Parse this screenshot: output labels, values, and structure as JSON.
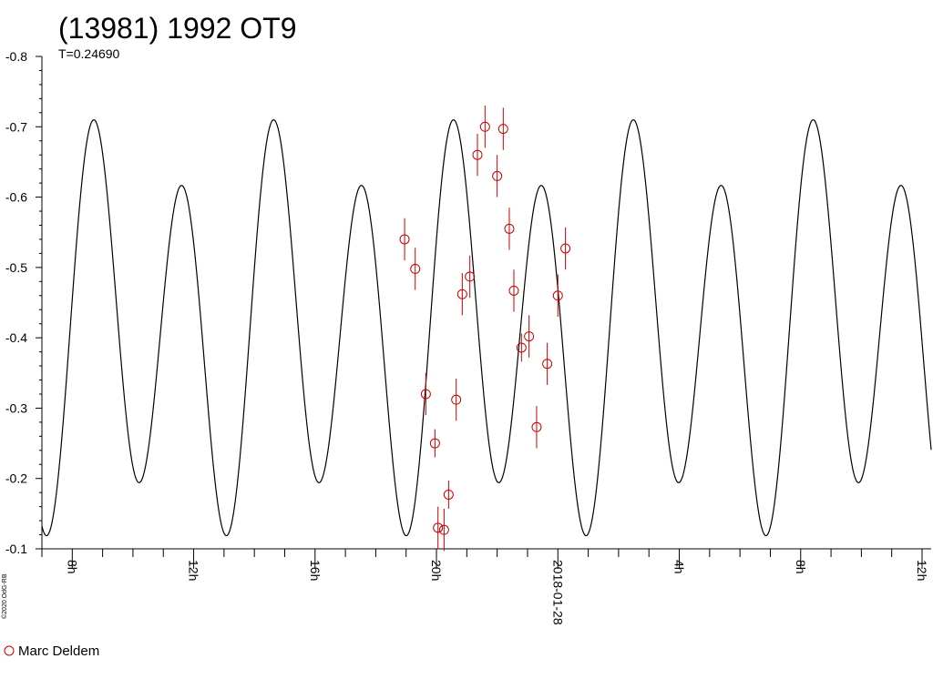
{
  "chart_data": {
    "type": "scatter",
    "title": "(13981) 1992 OT9",
    "subtitle": "T=0.24690",
    "copyright": "©2020 OdG-RB",
    "xlabel": "",
    "ylabel": "",
    "ylim": [
      -0.1,
      -0.8
    ],
    "y_ticks": [
      -0.8,
      -0.7,
      -0.6,
      -0.5,
      -0.4,
      -0.3,
      -0.2,
      -0.1
    ],
    "y_tick_labels": [
      "-0.8",
      "-0.7",
      "-0.6",
      "-0.5",
      "-0.4",
      "-0.3",
      "-0.2",
      "-0.1"
    ],
    "x_range_hours": [
      7.0,
      36.3
    ],
    "x_major_ticks": [
      {
        "hour": 8,
        "label": "8h"
      },
      {
        "hour": 12,
        "label": "12h"
      },
      {
        "hour": 16,
        "label": "16h"
      },
      {
        "hour": 20,
        "label": "20h"
      },
      {
        "hour": 24,
        "label": "2018-01-28"
      },
      {
        "hour": 28,
        "label": "4h"
      },
      {
        "hour": 32,
        "label": "8h"
      },
      {
        "hour": 36,
        "label": "12h"
      }
    ],
    "model_curve": {
      "period_hours": 5.9256,
      "mean": -0.41,
      "a1": 0.0,
      "b1": 0.06,
      "a2": 0.053,
      "b2": -0.247,
      "phase_ref_hour": 22.65
    },
    "series": [
      {
        "name": "Marc Deldem",
        "color": "#cc0000",
        "marker": "circle",
        "points": [
          {
            "x": 18.95,
            "y": -0.54,
            "err": 0.03
          },
          {
            "x": 19.3,
            "y": -0.498,
            "err": 0.03
          },
          {
            "x": 19.65,
            "y": -0.32,
            "err": 0.03
          },
          {
            "x": 19.95,
            "y": -0.25,
            "err": 0.02
          },
          {
            "x": 20.05,
            "y": -0.13,
            "err": 0.03
          },
          {
            "x": 20.25,
            "y": -0.127,
            "err": 0.03
          },
          {
            "x": 20.4,
            "y": -0.177,
            "err": 0.02
          },
          {
            "x": 20.65,
            "y": -0.312,
            "err": 0.03
          },
          {
            "x": 20.85,
            "y": -0.462,
            "err": 0.03
          },
          {
            "x": 21.1,
            "y": -0.487,
            "err": 0.03
          },
          {
            "x": 21.35,
            "y": -0.66,
            "err": 0.03
          },
          {
            "x": 21.6,
            "y": -0.7,
            "err": 0.03
          },
          {
            "x": 22.0,
            "y": -0.63,
            "err": 0.03
          },
          {
            "x": 22.2,
            "y": -0.697,
            "err": 0.03
          },
          {
            "x": 22.4,
            "y": -0.555,
            "err": 0.03
          },
          {
            "x": 22.55,
            "y": -0.467,
            "err": 0.03
          },
          {
            "x": 22.8,
            "y": -0.386,
            "err": 0.02
          },
          {
            "x": 23.05,
            "y": -0.402,
            "err": 0.03
          },
          {
            "x": 23.3,
            "y": -0.273,
            "err": 0.03
          },
          {
            "x": 23.65,
            "y": -0.363,
            "err": 0.03
          },
          {
            "x": 24.0,
            "y": -0.46,
            "err": 0.03
          },
          {
            "x": 24.25,
            "y": -0.527,
            "err": 0.03
          }
        ]
      }
    ],
    "legend": {
      "position": "bottom-left",
      "entries": [
        "Marc Deldem"
      ]
    },
    "grid": false
  }
}
